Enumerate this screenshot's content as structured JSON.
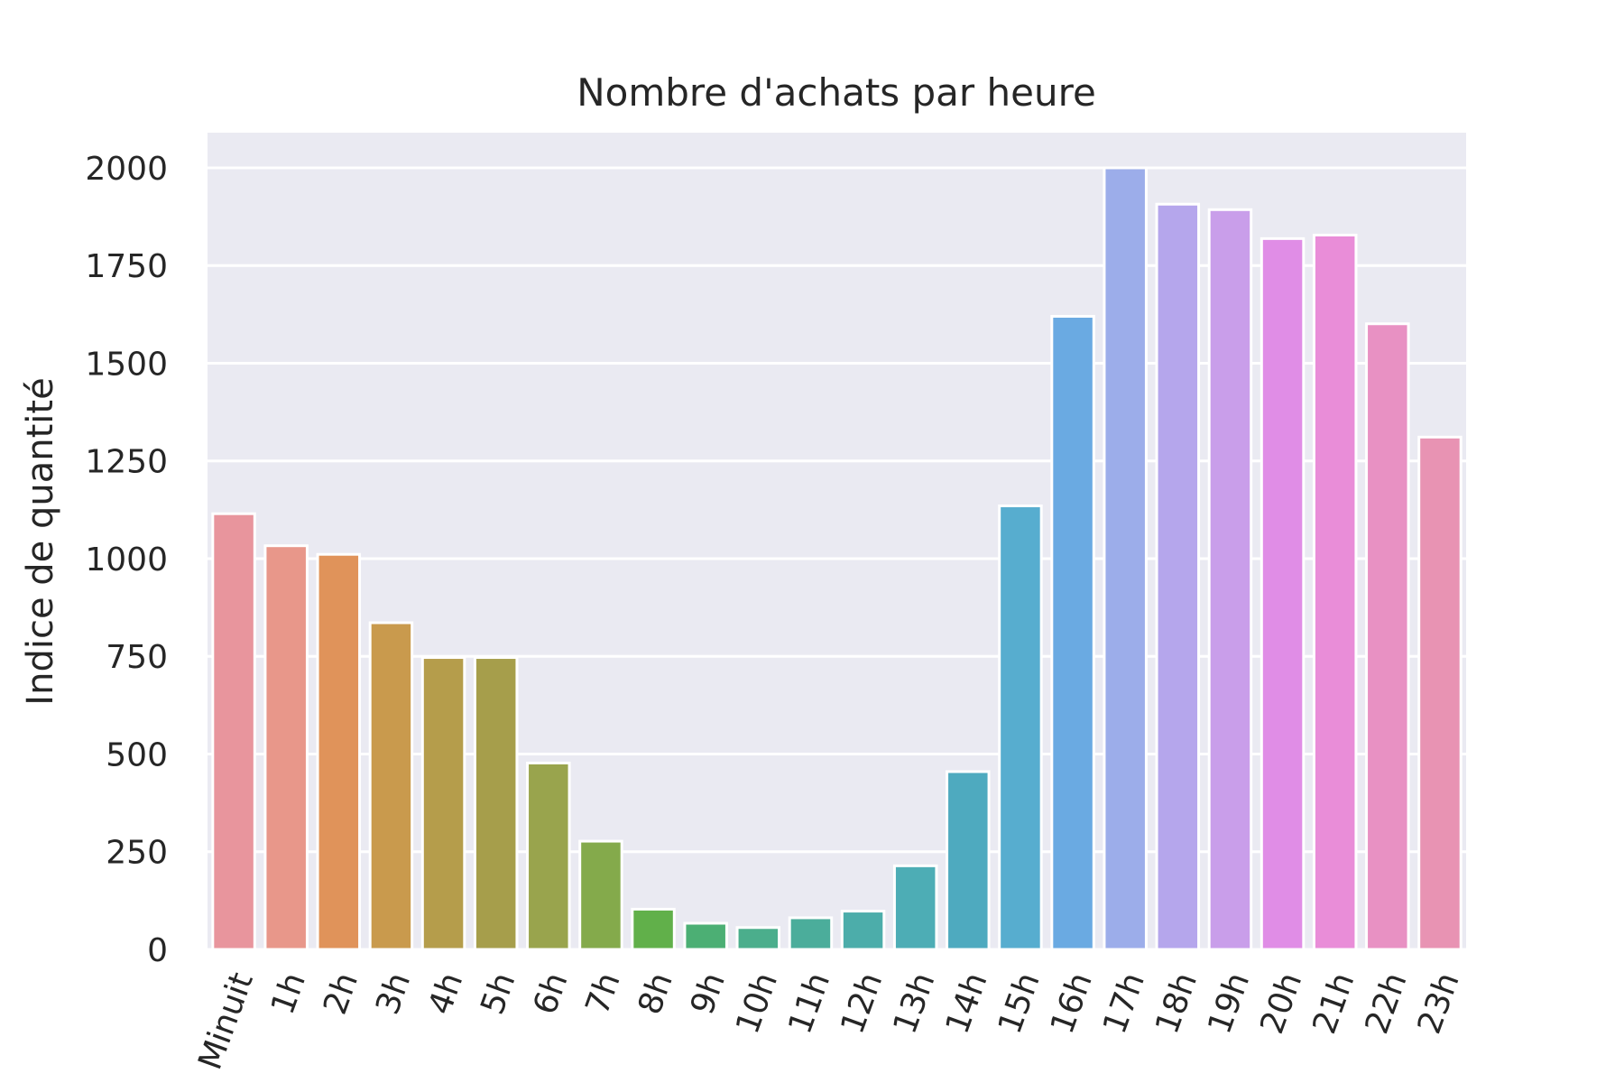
{
  "chart_data": {
    "type": "bar",
    "title": "Nombre d'achats par heure",
    "xlabel": "",
    "ylabel": "Indice de quantité",
    "ylim": [
      0,
      2090
    ],
    "yticks": [
      0,
      250,
      500,
      750,
      1000,
      1250,
      1500,
      1750,
      2000
    ],
    "grid": true,
    "legend": "none",
    "categories": [
      "Minuit",
      "1h",
      "2h",
      "3h",
      "4h",
      "5h",
      "6h",
      "7h",
      "8h",
      "9h",
      "10h",
      "11h",
      "12h",
      "13h",
      "14h",
      "15h",
      "16h",
      "17h",
      "18h",
      "19h",
      "20h",
      "21h",
      "22h",
      "23h"
    ],
    "values": [
      1115,
      1033,
      1011,
      836,
      747,
      747,
      477,
      277,
      103,
      67,
      56,
      81,
      98,
      214,
      455,
      1135,
      1620,
      2000,
      1907,
      1893,
      1819,
      1828,
      1601,
      1311
    ],
    "colors": [
      "#e8959d",
      "#e8978a",
      "#e0935a",
      "#c99a4d",
      "#b59d4b",
      "#a69e4b",
      "#99a44d",
      "#84aa4b",
      "#61b04a",
      "#4caf74",
      "#4bae8c",
      "#4bad9b",
      "#4cadaa",
      "#4dadb5",
      "#4eaabf",
      "#57adcf",
      "#6aaae2",
      "#9cadea",
      "#b5a6ec",
      "#c99eea",
      "#e08de6",
      "#e98dd8",
      "#e891c3",
      "#e893b3"
    ],
    "background": "#eaeaf2",
    "gridline_color": "#ffffff"
  }
}
